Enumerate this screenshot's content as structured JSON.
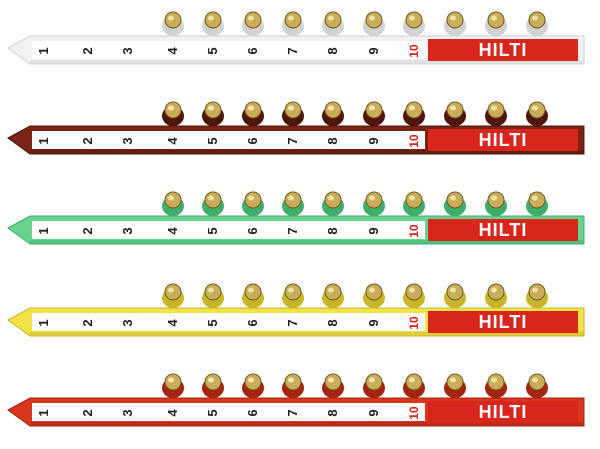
{
  "brand": "HILTI",
  "numbers": [
    "1",
    "2",
    "3",
    "4",
    "5",
    "6",
    "7",
    "8",
    "9",
    "10"
  ],
  "strips": [
    {
      "name": "white",
      "body": "#f2f2f2",
      "dark": "#d2d2d2",
      "label": "#ffffff",
      "num": "#222222"
    },
    {
      "name": "brown",
      "body": "#7a2416",
      "dark": "#4f150c",
      "label": "#ffffff",
      "num": "#222222"
    },
    {
      "name": "green",
      "body": "#67d38f",
      "dark": "#3fae6c",
      "label": "#ffffff",
      "num": "#222222"
    },
    {
      "name": "yellow",
      "body": "#f3e24a",
      "dark": "#c9b52a",
      "label": "#ffffff",
      "num": "#222222"
    },
    {
      "name": "red",
      "body": "#d8361f",
      "dark": "#a4240f",
      "label": "#ffffff",
      "num": "#222222"
    }
  ],
  "colors": {
    "hilti_red": "#d8261c",
    "cap_brass": "#c9ad5a",
    "cap_dark": "#6f5a22",
    "ten_color": "#d8261c"
  }
}
